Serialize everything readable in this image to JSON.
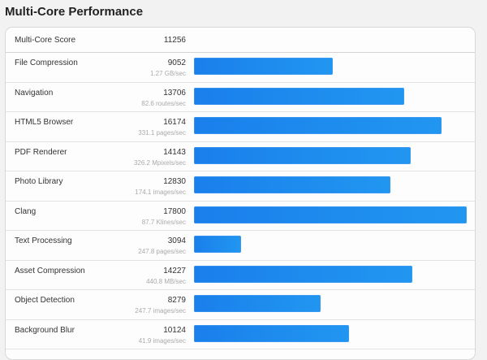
{
  "title": "Multi-Core Performance",
  "summary": {
    "label": "Multi-Core Score",
    "value": "11256"
  },
  "rows": [
    {
      "label": "File Compression",
      "value": "9052",
      "rate": "1.27 GB/sec"
    },
    {
      "label": "Navigation",
      "value": "13706",
      "rate": "82.6 routes/sec"
    },
    {
      "label": "HTML5 Browser",
      "value": "16174",
      "rate": "331.1 pages/sec"
    },
    {
      "label": "PDF Renderer",
      "value": "14143",
      "rate": "326.2 Mpixels/sec"
    },
    {
      "label": "Photo Library",
      "value": "12830",
      "rate": "174.1 images/sec"
    },
    {
      "label": "Clang",
      "value": "17800",
      "rate": "87.7 Klines/sec"
    },
    {
      "label": "Text Processing",
      "value": "3094",
      "rate": "247.8 pages/sec"
    },
    {
      "label": "Asset Compression",
      "value": "14227",
      "rate": "440.8 MB/sec"
    },
    {
      "label": "Object Detection",
      "value": "8279",
      "rate": "247.7 images/sec"
    },
    {
      "label": "Background Blur",
      "value": "10124",
      "rate": "41.9 images/sec"
    }
  ],
  "colors": {
    "bar_start": "#1a7fec",
    "bar_end": "#2196f0",
    "background": "#f2f2f2"
  },
  "chart_data": {
    "type": "bar",
    "orientation": "horizontal",
    "title": "Multi-Core Performance",
    "summary": {
      "label": "Multi-Core Score",
      "value": 11256
    },
    "categories": [
      "File Compression",
      "Navigation",
      "HTML5 Browser",
      "PDF Renderer",
      "Photo Library",
      "Clang",
      "Text Processing",
      "Asset Compression",
      "Object Detection",
      "Background Blur"
    ],
    "values": [
      9052,
      13706,
      16174,
      14143,
      12830,
      17800,
      3094,
      14227,
      8279,
      10124
    ],
    "secondary_labels": [
      "1.27 GB/sec",
      "82.6 routes/sec",
      "331.1 pages/sec",
      "326.2 Mpixels/sec",
      "174.1 images/sec",
      "87.7 Klines/sec",
      "247.8 pages/sec",
      "440.8 MB/sec",
      "247.7 images/sec",
      "41.9 images/sec"
    ],
    "xlabel": "",
    "ylabel": "",
    "xlim": [
      0,
      17800
    ],
    "grid": false,
    "legend": null
  }
}
